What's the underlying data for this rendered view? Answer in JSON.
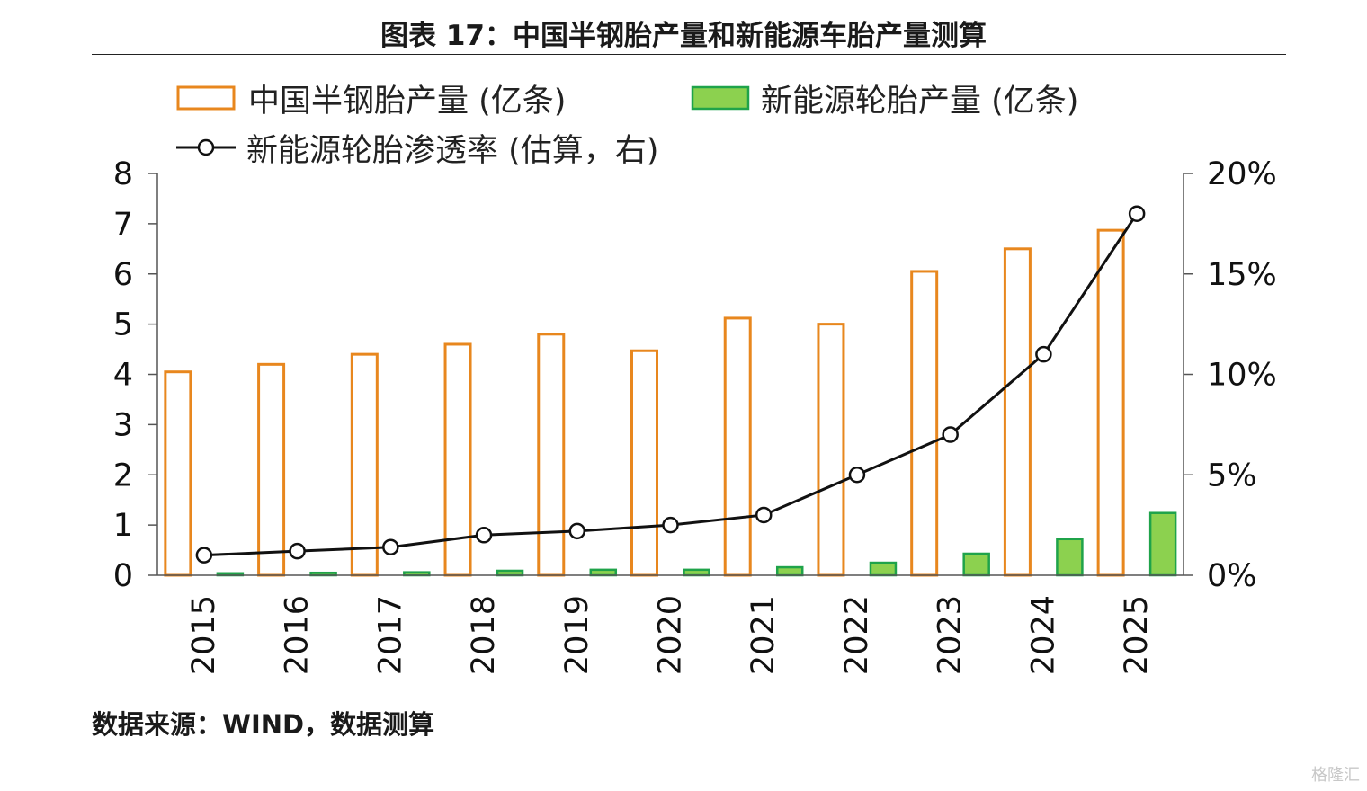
{
  "header": {
    "title": "图表 17：中国半钢胎产量和新能源车胎产量测算"
  },
  "footer": {
    "source": "数据来源：WIND，数据测算",
    "watermark": "格隆汇"
  },
  "colors": {
    "orange": "#E8871E",
    "green": "#8CD14F",
    "green_edge": "#1FA34A",
    "line": "#111111"
  },
  "chart_data": {
    "type": "bar",
    "categories": [
      "2015",
      "2016",
      "2017",
      "2018",
      "2019",
      "2020",
      "2021",
      "2022",
      "2023",
      "2024",
      "2025"
    ],
    "series": [
      {
        "name": "中国半钢胎产量 (亿条)",
        "type": "bar",
        "axis": "left",
        "style": "outline-orange",
        "values": [
          4.05,
          4.2,
          4.4,
          4.6,
          4.8,
          4.47,
          5.12,
          5.0,
          6.05,
          6.5,
          6.87
        ]
      },
      {
        "name": "新能源轮胎产量 (亿条)",
        "type": "bar",
        "axis": "left",
        "style": "filled-green",
        "values": [
          0.04,
          0.05,
          0.06,
          0.09,
          0.11,
          0.11,
          0.16,
          0.25,
          0.43,
          0.72,
          1.24
        ]
      },
      {
        "name": "新能源轮胎渗透率 (估算，右)",
        "type": "line",
        "axis": "right",
        "marker": "open-circle",
        "values": [
          1.0,
          1.2,
          1.4,
          2.0,
          2.2,
          2.5,
          3.0,
          5.0,
          7.0,
          11.0,
          18.0
        ]
      }
    ],
    "left_axis": {
      "ylim": [
        0,
        8
      ],
      "ticks": [
        "0",
        "1",
        "2",
        "3",
        "4",
        "5",
        "6",
        "7",
        "8"
      ]
    },
    "right_axis": {
      "ylim": [
        0,
        20
      ],
      "ticks": [
        "0%",
        "5%",
        "10%",
        "15%",
        "20%"
      ]
    },
    "legend_placement": "top-left",
    "grid": false
  }
}
